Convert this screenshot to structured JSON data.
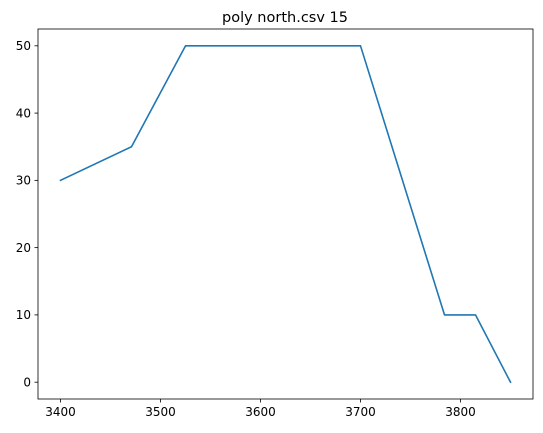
{
  "chart_data": {
    "type": "line",
    "title": "poly north.csv 15",
    "xlabel": "",
    "ylabel": "",
    "grid": false,
    "xlim": [
      3377.5,
      3872.5
    ],
    "ylim": [
      -2.5,
      52.5
    ],
    "xticks": [
      3400,
      3500,
      3600,
      3700,
      3800
    ],
    "yticks": [
      0,
      10,
      20,
      30,
      40,
      50
    ],
    "series": [
      {
        "color": "#1f77b4",
        "points": [
          {
            "x": 3400,
            "y": 30
          },
          {
            "x": 3471,
            "y": 35
          },
          {
            "x": 3525,
            "y": 50
          },
          {
            "x": 3700,
            "y": 50
          },
          {
            "x": 3784,
            "y": 10
          },
          {
            "x": 3815,
            "y": 10
          },
          {
            "x": 3850,
            "y": 0
          }
        ]
      }
    ]
  }
}
